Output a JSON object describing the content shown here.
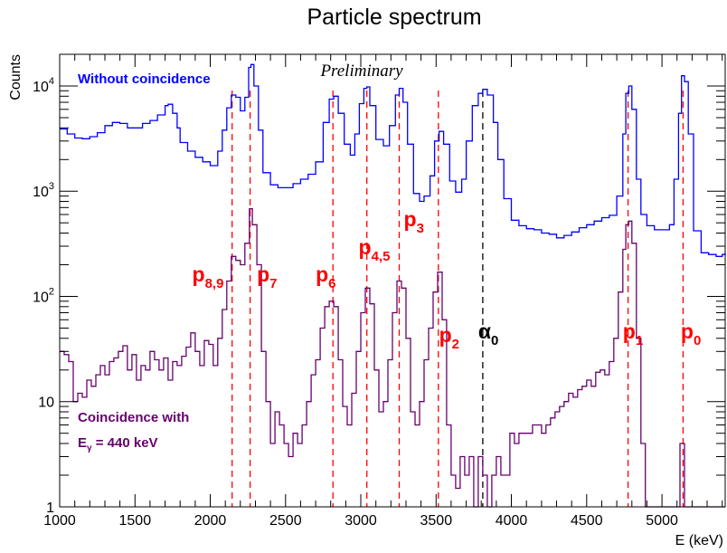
{
  "chart_data": {
    "type": "line",
    "title": "Particle spectrum",
    "xlabel": "E (keV)",
    "ylabel": "Counts",
    "xlim": [
      1000,
      5420
    ],
    "ylim": [
      1,
      20000
    ],
    "y_scale": "log",
    "x_ticks": [
      {
        "value": 1000,
        "label": "1000"
      },
      {
        "value": 1500,
        "label": "1500"
      },
      {
        "value": 2000,
        "label": "2000"
      },
      {
        "value": 2500,
        "label": "2500"
      },
      {
        "value": 3000,
        "label": "3000"
      },
      {
        "value": 3500,
        "label": "3500"
      },
      {
        "value": 4000,
        "label": "4000"
      },
      {
        "value": 4500,
        "label": "4500"
      },
      {
        "value": 5000,
        "label": "5000"
      }
    ],
    "y_ticks": [
      {
        "value": 1,
        "base": "1",
        "exp": ""
      },
      {
        "value": 10,
        "base": "10",
        "exp": ""
      },
      {
        "value": 100,
        "base": "10",
        "exp": "2"
      },
      {
        "value": 1000,
        "base": "10",
        "exp": "3"
      },
      {
        "value": 10000,
        "base": "10",
        "exp": "4"
      }
    ],
    "grid": false,
    "annotation": "Preliminary",
    "series": [
      {
        "name": "Without coincidence",
        "color": "#0000ff",
        "points": [
          [
            1000,
            3900
          ],
          [
            1050,
            3500
          ],
          [
            1100,
            3200
          ],
          [
            1150,
            3150
          ],
          [
            1200,
            3300
          ],
          [
            1250,
            3600
          ],
          [
            1300,
            4200
          ],
          [
            1350,
            4500
          ],
          [
            1400,
            4400
          ],
          [
            1450,
            4000
          ],
          [
            1500,
            4000
          ],
          [
            1550,
            4400
          ],
          [
            1600,
            4700
          ],
          [
            1650,
            5300
          ],
          [
            1700,
            6500
          ],
          [
            1720,
            6700
          ],
          [
            1750,
            5500
          ],
          [
            1780,
            4000
          ],
          [
            1800,
            2900
          ],
          [
            1850,
            2400
          ],
          [
            1900,
            2100
          ],
          [
            1950,
            1900
          ],
          [
            2000,
            1750
          ],
          [
            2050,
            2400
          ],
          [
            2080,
            3800
          ],
          [
            2110,
            6200
          ],
          [
            2140,
            8200
          ],
          [
            2170,
            7800
          ],
          [
            2200,
            5800
          ],
          [
            2230,
            7800
          ],
          [
            2255,
            15000
          ],
          [
            2270,
            16000
          ],
          [
            2290,
            10000
          ],
          [
            2320,
            3800
          ],
          [
            2350,
            1500
          ],
          [
            2400,
            1150
          ],
          [
            2450,
            1080
          ],
          [
            2500,
            1080
          ],
          [
            2550,
            1180
          ],
          [
            2600,
            1300
          ],
          [
            2650,
            1450
          ],
          [
            2700,
            1900
          ],
          [
            2750,
            4500
          ],
          [
            2790,
            7500
          ],
          [
            2820,
            8000
          ],
          [
            2850,
            5500
          ],
          [
            2890,
            2800
          ],
          [
            2930,
            2200
          ],
          [
            2960,
            3500
          ],
          [
            2990,
            6800
          ],
          [
            3020,
            9500
          ],
          [
            3040,
            9800
          ],
          [
            3060,
            6500
          ],
          [
            3100,
            3100
          ],
          [
            3150,
            2700
          ],
          [
            3190,
            4200
          ],
          [
            3230,
            8200
          ],
          [
            3255,
            9500
          ],
          [
            3280,
            7000
          ],
          [
            3310,
            2800
          ],
          [
            3350,
            950
          ],
          [
            3390,
            800
          ],
          [
            3420,
            900
          ],
          [
            3460,
            1400
          ],
          [
            3490,
            3000
          ],
          [
            3520,
            3700
          ],
          [
            3550,
            2800
          ],
          [
            3590,
            1250
          ],
          [
            3630,
            980
          ],
          [
            3670,
            1300
          ],
          [
            3700,
            3000
          ],
          [
            3740,
            6500
          ],
          [
            3780,
            8500
          ],
          [
            3810,
            9300
          ],
          [
            3840,
            8200
          ],
          [
            3880,
            4500
          ],
          [
            3910,
            2000
          ],
          [
            3950,
            850
          ],
          [
            4000,
            530
          ],
          [
            4050,
            470
          ],
          [
            4100,
            440
          ],
          [
            4150,
            430
          ],
          [
            4200,
            400
          ],
          [
            4250,
            390
          ],
          [
            4300,
            360
          ],
          [
            4350,
            380
          ],
          [
            4400,
            410
          ],
          [
            4450,
            450
          ],
          [
            4500,
            480
          ],
          [
            4550,
            520
          ],
          [
            4600,
            560
          ],
          [
            4650,
            590
          ],
          [
            4700,
            900
          ],
          [
            4740,
            3500
          ],
          [
            4760,
            8500
          ],
          [
            4780,
            10000
          ],
          [
            4800,
            6000
          ],
          [
            4830,
            1300
          ],
          [
            4860,
            600
          ],
          [
            4900,
            470
          ],
          [
            4950,
            430
          ],
          [
            5000,
            430
          ],
          [
            5050,
            480
          ],
          [
            5080,
            1300
          ],
          [
            5110,
            5500
          ],
          [
            5130,
            12500
          ],
          [
            5150,
            11000
          ],
          [
            5175,
            3500
          ],
          [
            5210,
            420
          ],
          [
            5260,
            260
          ],
          [
            5310,
            250
          ],
          [
            5360,
            240
          ],
          [
            5400,
            250
          ],
          [
            5420,
            260
          ]
        ]
      },
      {
        "name": "Coincidence with Eγ = 440 keV",
        "color": "#66006e",
        "points": [
          [
            1000,
            30
          ],
          [
            1030,
            28
          ],
          [
            1060,
            24
          ],
          [
            1090,
            10
          ],
          [
            1120,
            12
          ],
          [
            1150,
            11
          ],
          [
            1180,
            16
          ],
          [
            1210,
            14
          ],
          [
            1240,
            18
          ],
          [
            1270,
            22
          ],
          [
            1300,
            18
          ],
          [
            1330,
            24
          ],
          [
            1360,
            26
          ],
          [
            1390,
            30
          ],
          [
            1420,
            34
          ],
          [
            1450,
            20
          ],
          [
            1480,
            28
          ],
          [
            1510,
            16
          ],
          [
            1540,
            22
          ],
          [
            1570,
            20
          ],
          [
            1600,
            30
          ],
          [
            1630,
            25
          ],
          [
            1660,
            20
          ],
          [
            1690,
            26
          ],
          [
            1720,
            16
          ],
          [
            1750,
            24
          ],
          [
            1780,
            22
          ],
          [
            1810,
            27
          ],
          [
            1840,
            33
          ],
          [
            1870,
            45
          ],
          [
            1900,
            30
          ],
          [
            1930,
            22
          ],
          [
            1960,
            38
          ],
          [
            1990,
            35
          ],
          [
            2020,
            22
          ],
          [
            2050,
            40
          ],
          [
            2080,
            75
          ],
          [
            2110,
            140
          ],
          [
            2140,
            240
          ],
          [
            2170,
            220
          ],
          [
            2200,
            200
          ],
          [
            2230,
            320
          ],
          [
            2260,
            680
          ],
          [
            2280,
            480
          ],
          [
            2310,
            200
          ],
          [
            2340,
            30
          ],
          [
            2370,
            10
          ],
          [
            2400,
            4
          ],
          [
            2430,
            8
          ],
          [
            2460,
            6
          ],
          [
            2490,
            4
          ],
          [
            2520,
            3
          ],
          [
            2550,
            5
          ],
          [
            2580,
            4
          ],
          [
            2610,
            6
          ],
          [
            2640,
            10
          ],
          [
            2670,
            18
          ],
          [
            2700,
            25
          ],
          [
            2730,
            50
          ],
          [
            2760,
            80
          ],
          [
            2790,
            90
          ],
          [
            2820,
            80
          ],
          [
            2850,
            25
          ],
          [
            2880,
            9
          ],
          [
            2910,
            6
          ],
          [
            2940,
            12
          ],
          [
            2970,
            30
          ],
          [
            3000,
            70
          ],
          [
            3030,
            120
          ],
          [
            3060,
            85
          ],
          [
            3090,
            20
          ],
          [
            3120,
            8
          ],
          [
            3150,
            10
          ],
          [
            3180,
            25
          ],
          [
            3210,
            70
          ],
          [
            3240,
            140
          ],
          [
            3270,
            120
          ],
          [
            3300,
            40
          ],
          [
            3330,
            8
          ],
          [
            3360,
            6
          ],
          [
            3390,
            10
          ],
          [
            3420,
            25
          ],
          [
            3450,
            50
          ],
          [
            3480,
            110
          ],
          [
            3510,
            170
          ],
          [
            3540,
            60
          ],
          [
            3570,
            6
          ],
          [
            3600,
            2
          ],
          [
            3630,
            1.5
          ],
          [
            3660,
            3
          ],
          [
            3690,
            2
          ],
          [
            3720,
            3
          ],
          [
            3750,
            1
          ],
          [
            3780,
            3
          ],
          [
            3810,
            2
          ],
          [
            3840,
            1
          ],
          [
            3870,
            2
          ],
          [
            3900,
            3
          ],
          [
            3930,
            2
          ],
          [
            3960,
            2
          ],
          [
            3990,
            5
          ],
          [
            4020,
            4
          ],
          [
            4050,
            5
          ],
          [
            4080,
            5
          ],
          [
            4110,
            5
          ],
          [
            4140,
            6
          ],
          [
            4170,
            6
          ],
          [
            4200,
            5
          ],
          [
            4230,
            6
          ],
          [
            4260,
            7
          ],
          [
            4290,
            8
          ],
          [
            4320,
            9
          ],
          [
            4350,
            10
          ],
          [
            4380,
            12
          ],
          [
            4410,
            11
          ],
          [
            4440,
            13
          ],
          [
            4470,
            14
          ],
          [
            4500,
            16
          ],
          [
            4530,
            14
          ],
          [
            4560,
            19
          ],
          [
            4590,
            20
          ],
          [
            4620,
            18
          ],
          [
            4650,
            24
          ],
          [
            4680,
            40
          ],
          [
            4710,
            110
          ],
          [
            4740,
            280
          ],
          [
            4760,
            480
          ],
          [
            4780,
            520
          ],
          [
            4800,
            320
          ],
          [
            4830,
            40
          ],
          [
            4860,
            4
          ],
          [
            4890,
            1
          ],
          [
            4950,
            1
          ],
          [
            5000,
            1
          ],
          [
            5050,
            1
          ],
          [
            5110,
            1
          ],
          [
            5120,
            4
          ],
          [
            5140,
            4
          ],
          [
            5150,
            1
          ],
          [
            5200,
            1
          ],
          [
            5420,
            1
          ]
        ]
      }
    ],
    "legend": {
      "without": "Without coincidence",
      "with_line1": "Coincidence with",
      "with_E": "E",
      "with_sub": "γ",
      "with_rest": " = 440 keV"
    },
    "peaks": [
      {
        "name": "p0",
        "energy": 5140,
        "main": "p",
        "sub": "0",
        "color": "#ff0000"
      },
      {
        "name": "p1",
        "energy": 4775,
        "main": "p",
        "sub": "1",
        "color": "#ff0000"
      },
      {
        "name": "p2",
        "energy": 3515,
        "main": "p",
        "sub": "2",
        "color": "#ff0000"
      },
      {
        "name": "p3",
        "energy": 3255,
        "main": "p",
        "sub": "3",
        "color": "#ff0000"
      },
      {
        "name": "p4,5",
        "energy": 3040,
        "main": "p",
        "sub": "4,5",
        "color": "#ff0000"
      },
      {
        "name": "p6",
        "energy": 2815,
        "main": "p",
        "sub": "6",
        "color": "#ff0000"
      },
      {
        "name": "p7",
        "energy": 2265,
        "main": "p",
        "sub": "7",
        "color": "#ff0000"
      },
      {
        "name": "p8,9",
        "energy": 2145,
        "main": "p",
        "sub": "8,9",
        "color": "#ff0000"
      },
      {
        "name": "alpha0",
        "energy": 3810,
        "main": "α",
        "sub": "0",
        "color": "#000000"
      }
    ]
  }
}
